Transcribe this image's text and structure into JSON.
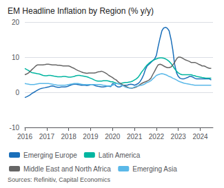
{
  "chart_data": {
    "type": "line",
    "title": "EM Headline Inflation by Region (% y/y)",
    "annotations": [
      "Sources: Refinitiv, Capital Economics"
    ],
    "xlim": [
      2016.0,
      2024.58
    ],
    "xticks": [
      2016,
      2017,
      2018,
      2019,
      2020,
      2021,
      2022,
      2023,
      2024
    ],
    "ylim": [
      -10,
      20
    ],
    "yticks": [
      -10,
      0,
      10,
      20
    ],
    "grid": true,
    "legend": "bottom",
    "x": [
      2016.0,
      2016.08,
      2016.17,
      2016.25,
      2016.33,
      2016.42,
      2016.5,
      2016.58,
      2016.67,
      2016.75,
      2016.83,
      2016.92,
      2017.0,
      2017.08,
      2017.17,
      2017.25,
      2017.33,
      2017.42,
      2017.5,
      2017.58,
      2017.67,
      2017.75,
      2017.83,
      2017.92,
      2018.0,
      2018.08,
      2018.17,
      2018.25,
      2018.33,
      2018.42,
      2018.5,
      2018.58,
      2018.67,
      2018.75,
      2018.83,
      2018.92,
      2019.0,
      2019.08,
      2019.17,
      2019.25,
      2019.33,
      2019.42,
      2019.5,
      2019.58,
      2019.67,
      2019.75,
      2019.83,
      2019.92,
      2020.0,
      2020.08,
      2020.17,
      2020.25,
      2020.33,
      2020.42,
      2020.5,
      2020.58,
      2020.67,
      2020.75,
      2020.83,
      2020.92,
      2021.0,
      2021.08,
      2021.17,
      2021.25,
      2021.33,
      2021.42,
      2021.5,
      2021.58,
      2021.67,
      2021.75,
      2021.83,
      2021.92,
      2022.0,
      2022.08,
      2022.17,
      2022.25,
      2022.33,
      2022.42,
      2022.5,
      2022.58,
      2022.67,
      2022.75,
      2022.83,
      2022.92,
      2023.0,
      2023.08,
      2023.17,
      2023.25,
      2023.33,
      2023.42,
      2023.5,
      2023.58,
      2023.67,
      2023.75,
      2023.83,
      2023.92,
      2024.0,
      2024.08,
      2024.17,
      2024.25,
      2024.33,
      2024.42,
      2024.5
    ],
    "series": [
      {
        "name": "Emerging Europe",
        "color": "#1a6fba",
        "values": [
          -1.5,
          -1.3,
          -1.0,
          -0.7,
          -0.3,
          0.0,
          0.3,
          0.6,
          0.9,
          1.1,
          1.2,
          1.3,
          1.4,
          1.5,
          1.7,
          1.8,
          1.7,
          1.5,
          1.4,
          1.4,
          1.5,
          1.5,
          1.5,
          1.6,
          1.8,
          2.0,
          2.2,
          2.3,
          2.3,
          2.2,
          2.1,
          2.0,
          2.0,
          2.0,
          1.9,
          2.0,
          2.2,
          2.2,
          2.0,
          1.8,
          1.7,
          1.6,
          1.5,
          1.5,
          1.6,
          1.7,
          1.7,
          1.6,
          2.5,
          2.3,
          1.8,
          1.5,
          1.5,
          1.8,
          2.0,
          2.0,
          2.0,
          2.2,
          2.3,
          2.2,
          2.0,
          2.2,
          2.5,
          3.0,
          3.8,
          5.0,
          6.5,
          7.5,
          8.0,
          8.5,
          9.0,
          9.5,
          10.5,
          13.0,
          15.5,
          17.5,
          18.3,
          18.5,
          18.2,
          17.5,
          15.0,
          12.0,
          8.0,
          5.5,
          4.5,
          4.0,
          3.8,
          3.8,
          4.0,
          4.2,
          4.5,
          4.5,
          4.3,
          4.0,
          3.8,
          3.8,
          3.8,
          3.8,
          3.8,
          3.8,
          3.8,
          3.8,
          3.5
        ]
      },
      {
        "name": "Latin America",
        "color": "#00b5a0",
        "values": [
          6.8,
          6.5,
          6.2,
          5.8,
          5.6,
          5.5,
          5.4,
          5.3,
          5.2,
          5.0,
          4.8,
          4.7,
          4.7,
          4.8,
          4.8,
          4.7,
          4.6,
          4.5,
          4.4,
          4.4,
          4.4,
          4.5,
          4.5,
          4.4,
          4.3,
          4.3,
          4.4,
          4.5,
          4.7,
          4.8,
          4.8,
          4.7,
          4.6,
          4.5,
          4.4,
          4.2,
          4.0,
          3.8,
          3.5,
          3.3,
          3.2,
          3.2,
          3.2,
          3.3,
          3.3,
          3.3,
          3.2,
          3.0,
          3.0,
          2.8,
          2.6,
          2.4,
          2.5,
          2.6,
          2.7,
          2.8,
          2.8,
          2.9,
          3.0,
          3.2,
          3.5,
          3.8,
          4.3,
          5.0,
          5.8,
          6.5,
          7.2,
          7.8,
          8.3,
          8.7,
          9.0,
          9.3,
          9.5,
          9.7,
          9.8,
          9.8,
          9.7,
          9.5,
          9.2,
          8.8,
          8.2,
          7.5,
          6.7,
          6.0,
          5.5,
          5.2,
          5.0,
          5.0,
          5.0,
          5.0,
          5.0,
          5.0,
          4.8,
          4.7,
          4.5,
          4.4,
          4.3,
          4.2,
          4.1,
          4.0,
          4.0,
          4.0,
          4.0
        ]
      },
      {
        "name": "Middle East and North Africa",
        "color": "#666666",
        "values": [
          5.0,
          5.2,
          5.5,
          6.0,
          6.5,
          7.0,
          7.5,
          7.8,
          7.8,
          7.8,
          7.8,
          7.9,
          8.0,
          8.0,
          7.9,
          7.8,
          7.8,
          7.8,
          7.7,
          7.7,
          7.6,
          7.5,
          7.5,
          7.5,
          7.5,
          7.3,
          7.0,
          6.8,
          6.5,
          6.2,
          6.0,
          5.8,
          5.6,
          5.5,
          5.4,
          5.5,
          5.5,
          5.5,
          5.5,
          5.6,
          5.8,
          5.9,
          6.0,
          5.8,
          5.5,
          5.2,
          4.8,
          4.5,
          4.2,
          3.8,
          3.5,
          3.0,
          2.6,
          2.3,
          2.0,
          1.8,
          1.5,
          1.3,
          1.2,
          1.2,
          1.3,
          1.5,
          1.8,
          2.2,
          2.5,
          2.8,
          3.0,
          3.2,
          3.5,
          4.0,
          5.0,
          6.0,
          7.0,
          7.8,
          8.0,
          7.8,
          7.5,
          7.2,
          7.0,
          7.0,
          7.2,
          7.8,
          8.5,
          9.5,
          10.0,
          10.0,
          9.8,
          9.5,
          9.2,
          9.0,
          8.8,
          8.5,
          8.5,
          8.5,
          8.3,
          8.0,
          7.8,
          7.5,
          7.5,
          7.3,
          7.0,
          6.8,
          6.8
        ]
      },
      {
        "name": "Emerging Asia",
        "color": "#5ab8e8",
        "values": [
          2.5,
          2.4,
          2.3,
          2.2,
          2.2,
          2.2,
          2.3,
          2.4,
          2.5,
          2.5,
          2.5,
          2.5,
          2.5,
          2.5,
          2.4,
          2.3,
          2.2,
          2.1,
          2.0,
          2.0,
          2.0,
          2.0,
          2.0,
          2.1,
          2.2,
          2.3,
          2.4,
          2.5,
          2.5,
          2.5,
          2.4,
          2.3,
          2.2,
          2.2,
          2.2,
          2.2,
          2.2,
          2.2,
          2.2,
          2.2,
          2.2,
          2.2,
          2.1,
          2.0,
          1.9,
          1.8,
          1.8,
          1.8,
          2.0,
          2.2,
          2.5,
          2.5,
          2.3,
          2.0,
          1.8,
          1.5,
          1.3,
          1.2,
          1.2,
          1.3,
          1.5,
          1.7,
          1.8,
          1.9,
          2.0,
          2.2,
          2.5,
          2.8,
          3.0,
          3.3,
          3.8,
          4.3,
          4.8,
          5.0,
          5.2,
          5.3,
          5.2,
          5.0,
          4.8,
          4.5,
          4.3,
          4.0,
          3.8,
          3.5,
          3.2,
          3.0,
          2.8,
          2.6,
          2.5,
          2.4,
          2.3,
          2.2,
          2.1,
          2.0,
          2.0,
          2.0,
          2.0,
          2.0,
          2.0,
          2.0,
          2.0,
          2.0,
          2.0
        ]
      }
    ]
  }
}
